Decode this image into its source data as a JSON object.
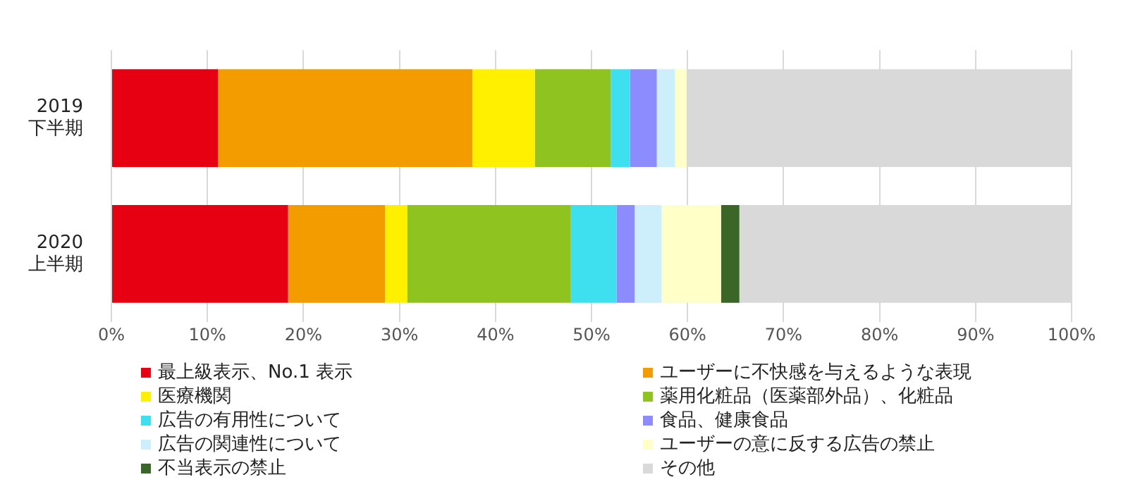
{
  "chart_data": {
    "type": "bar",
    "orientation": "horizontal",
    "stacked": true,
    "categories": [
      "2019\n下半期",
      "2020\n上半期"
    ],
    "series": [
      {
        "name": "最上級表示、No.1 表示",
        "color": "#e60012",
        "values": [
          11.1,
          18.4
        ]
      },
      {
        "name": "ユーザーに不快感を与えるような表現",
        "color": "#f39c00",
        "values": [
          26.5,
          10.1
        ]
      },
      {
        "name": "医療機関",
        "color": "#fff000",
        "values": [
          6.5,
          2.3
        ]
      },
      {
        "name": "薬用化粧品（医薬部外品）、化粧品",
        "color": "#8fc31f",
        "values": [
          7.9,
          17.0
        ]
      },
      {
        "name": "広告の有用性について",
        "color": "#3ee0ef",
        "values": [
          2.0,
          4.8
        ]
      },
      {
        "name": "食品、健康食品",
        "color": "#8c8cff",
        "values": [
          2.8,
          1.9
        ]
      },
      {
        "name": "広告の関連性について",
        "color": "#cdeffc",
        "values": [
          1.9,
          2.8
        ]
      },
      {
        "name": "ユーザーの意に反する広告の禁止",
        "color": "#ffffc8",
        "values": [
          1.2,
          6.2
        ]
      },
      {
        "name": "不当表示の禁止",
        "color": "#3a6628",
        "values": [
          0,
          1.9
        ]
      },
      {
        "name": "その他",
        "color": "#d9d9d9",
        "values": [
          40.1,
          34.6
        ]
      }
    ],
    "xlim": [
      0,
      100
    ],
    "xticks": [
      {
        "value": 0,
        "label": "0%"
      },
      {
        "value": 10,
        "label": "10%"
      },
      {
        "value": 20,
        "label": "20%"
      },
      {
        "value": 30,
        "label": "30%"
      },
      {
        "value": 40,
        "label": "40%"
      },
      {
        "value": 50,
        "label": "50%"
      },
      {
        "value": 60,
        "label": "60%"
      },
      {
        "value": 70,
        "label": "70%"
      },
      {
        "value": 80,
        "label": "80%"
      },
      {
        "value": 90,
        "label": "90%"
      },
      {
        "value": 100,
        "label": "100%"
      }
    ],
    "grid": "x",
    "legend": "bottom"
  }
}
